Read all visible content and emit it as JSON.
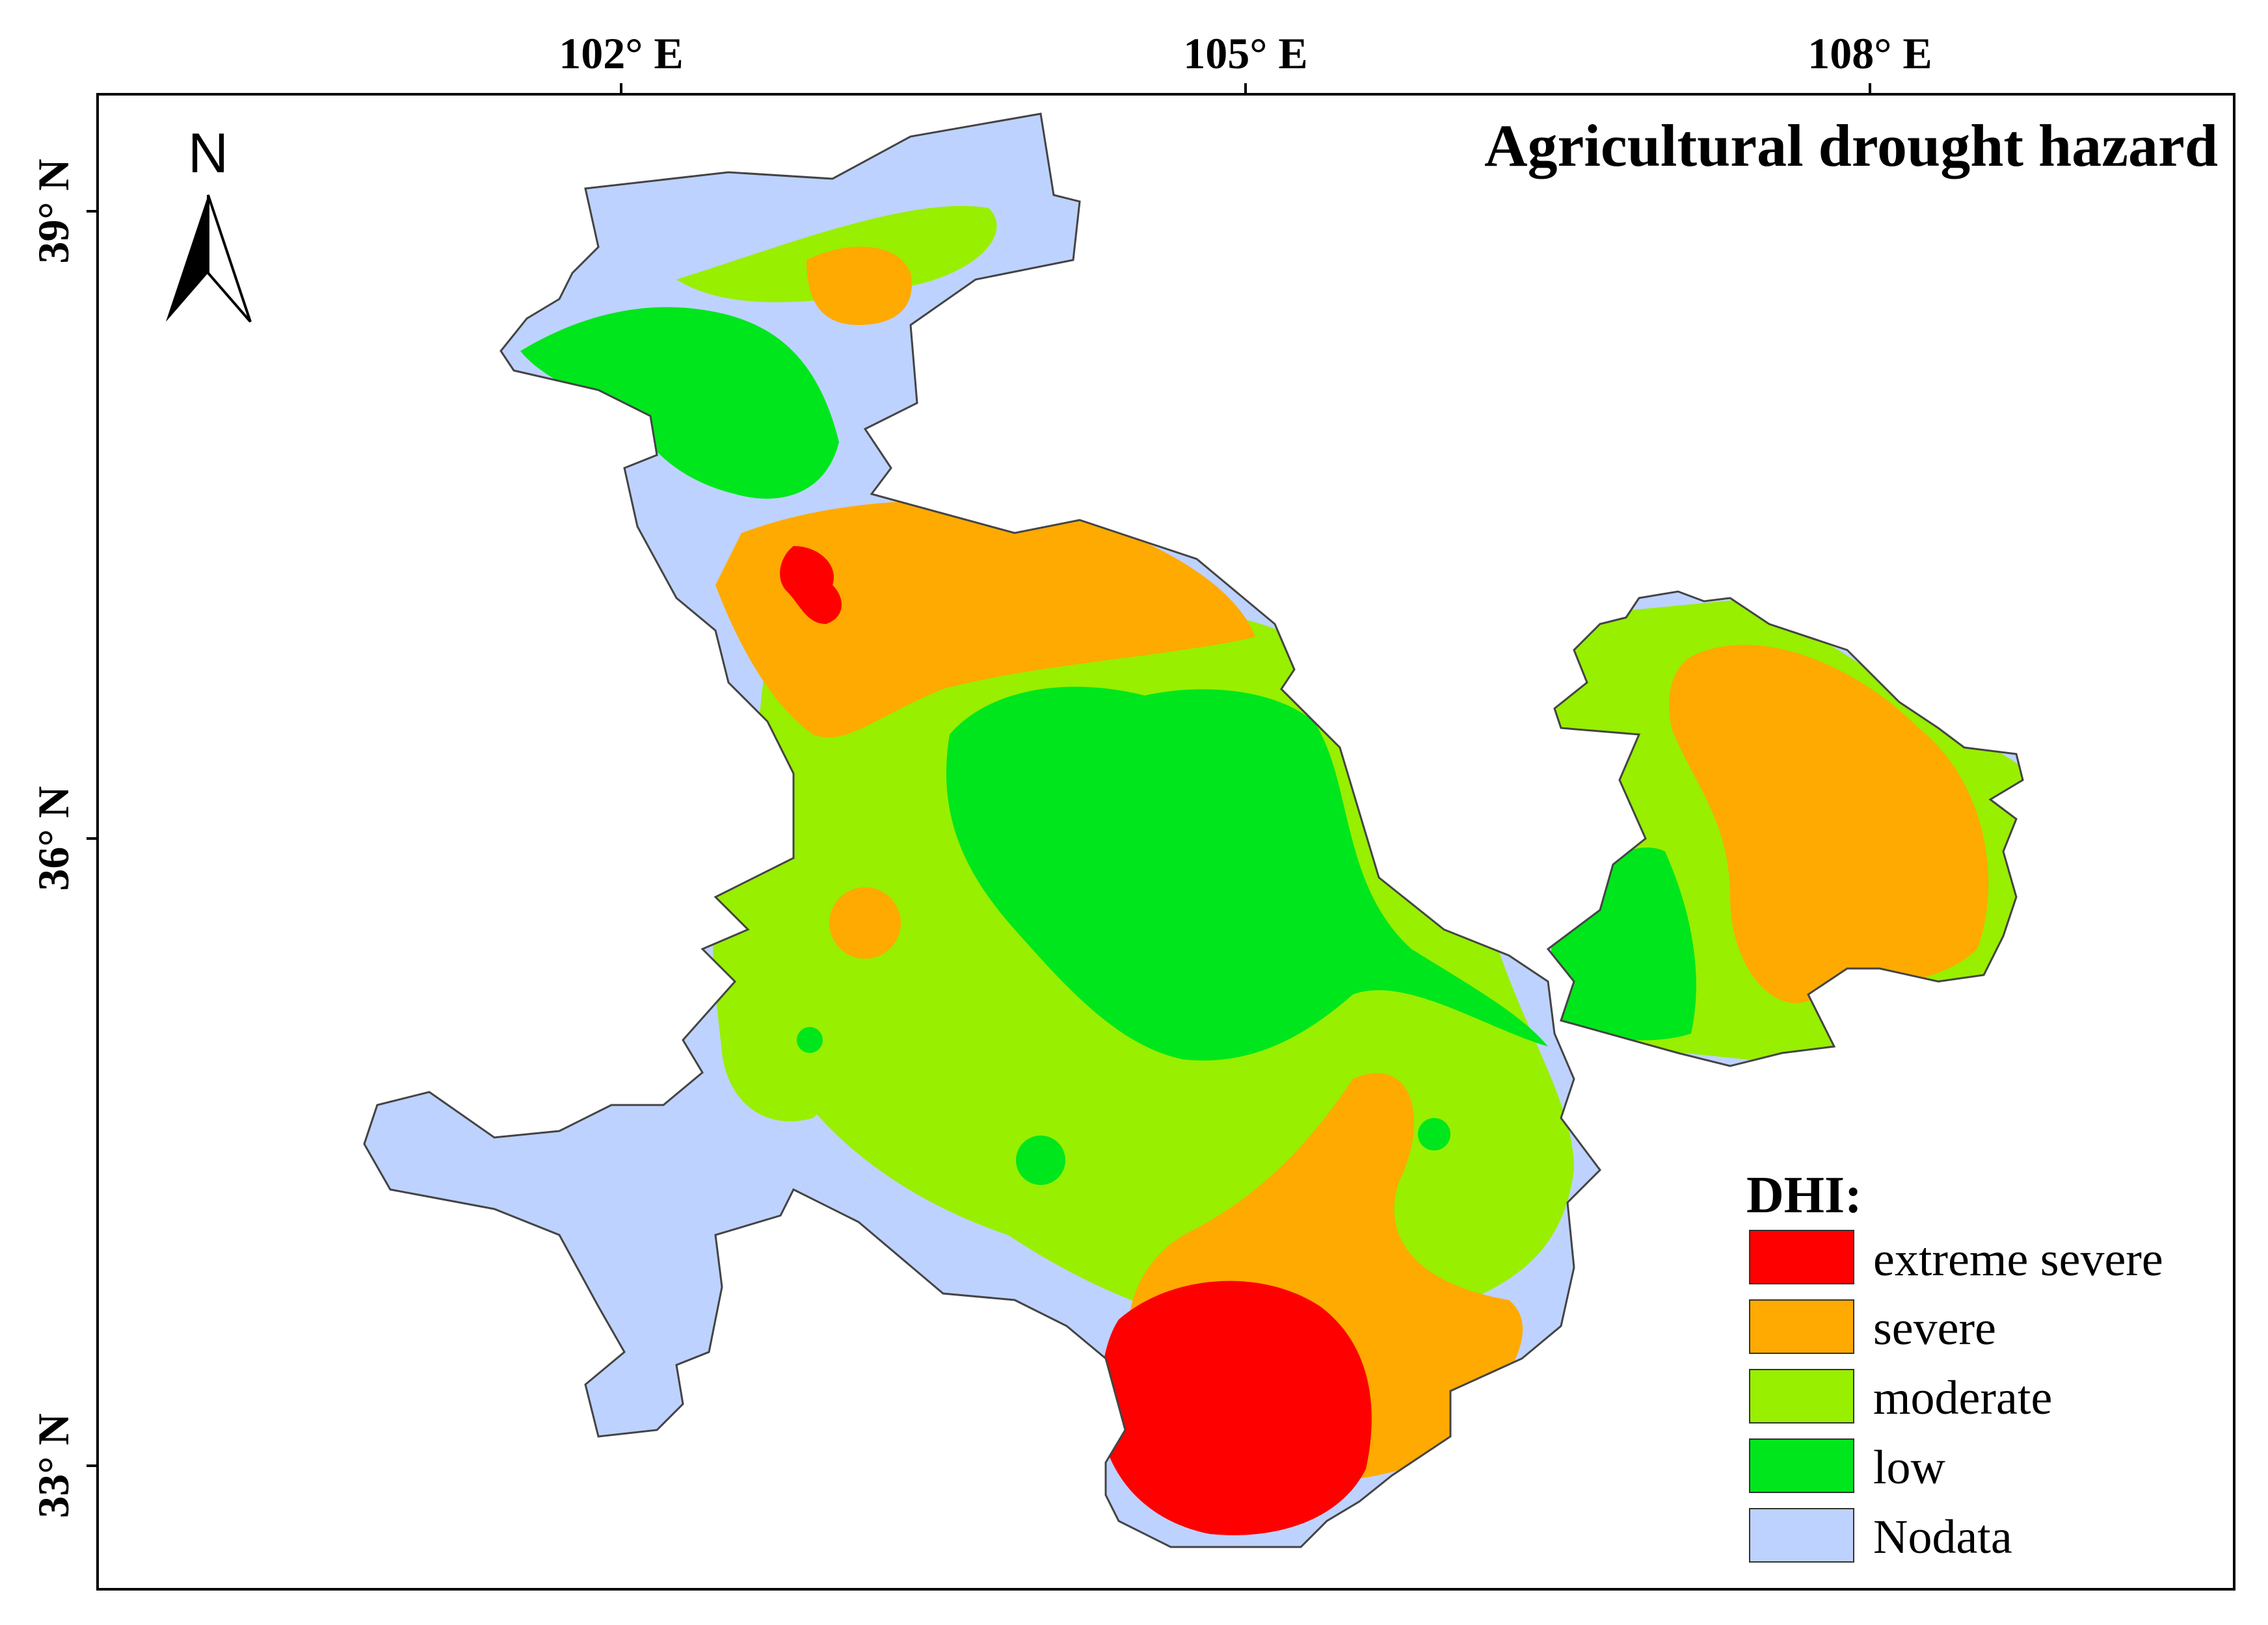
{
  "title": "Agricultural drought hazard",
  "north_arrow": {
    "label": "N",
    "icon": "north-arrow-icon"
  },
  "graticule": {
    "longitudes": [
      {
        "value": 102,
        "label": "102° E"
      },
      {
        "value": 105,
        "label": "105° E"
      },
      {
        "value": 108,
        "label": "108° E"
      }
    ],
    "latitudes": [
      {
        "value": 39,
        "label": "39° N"
      },
      {
        "value": 36,
        "label": "36° N"
      },
      {
        "value": 33,
        "label": "33° N"
      }
    ]
  },
  "legend": {
    "title": "DHI:",
    "items": [
      {
        "key": "extreme",
        "label": "extreme severe",
        "color": "#ff0000"
      },
      {
        "key": "severe",
        "label": "severe",
        "color": "#ffaa00"
      },
      {
        "key": "moderate",
        "label": "moderate",
        "color": "#98ef00"
      },
      {
        "key": "low",
        "label": "low",
        "color": "#00e61c"
      },
      {
        "key": "nodata",
        "label": "Nodata",
        "color": "#bed2ff"
      }
    ]
  }
}
